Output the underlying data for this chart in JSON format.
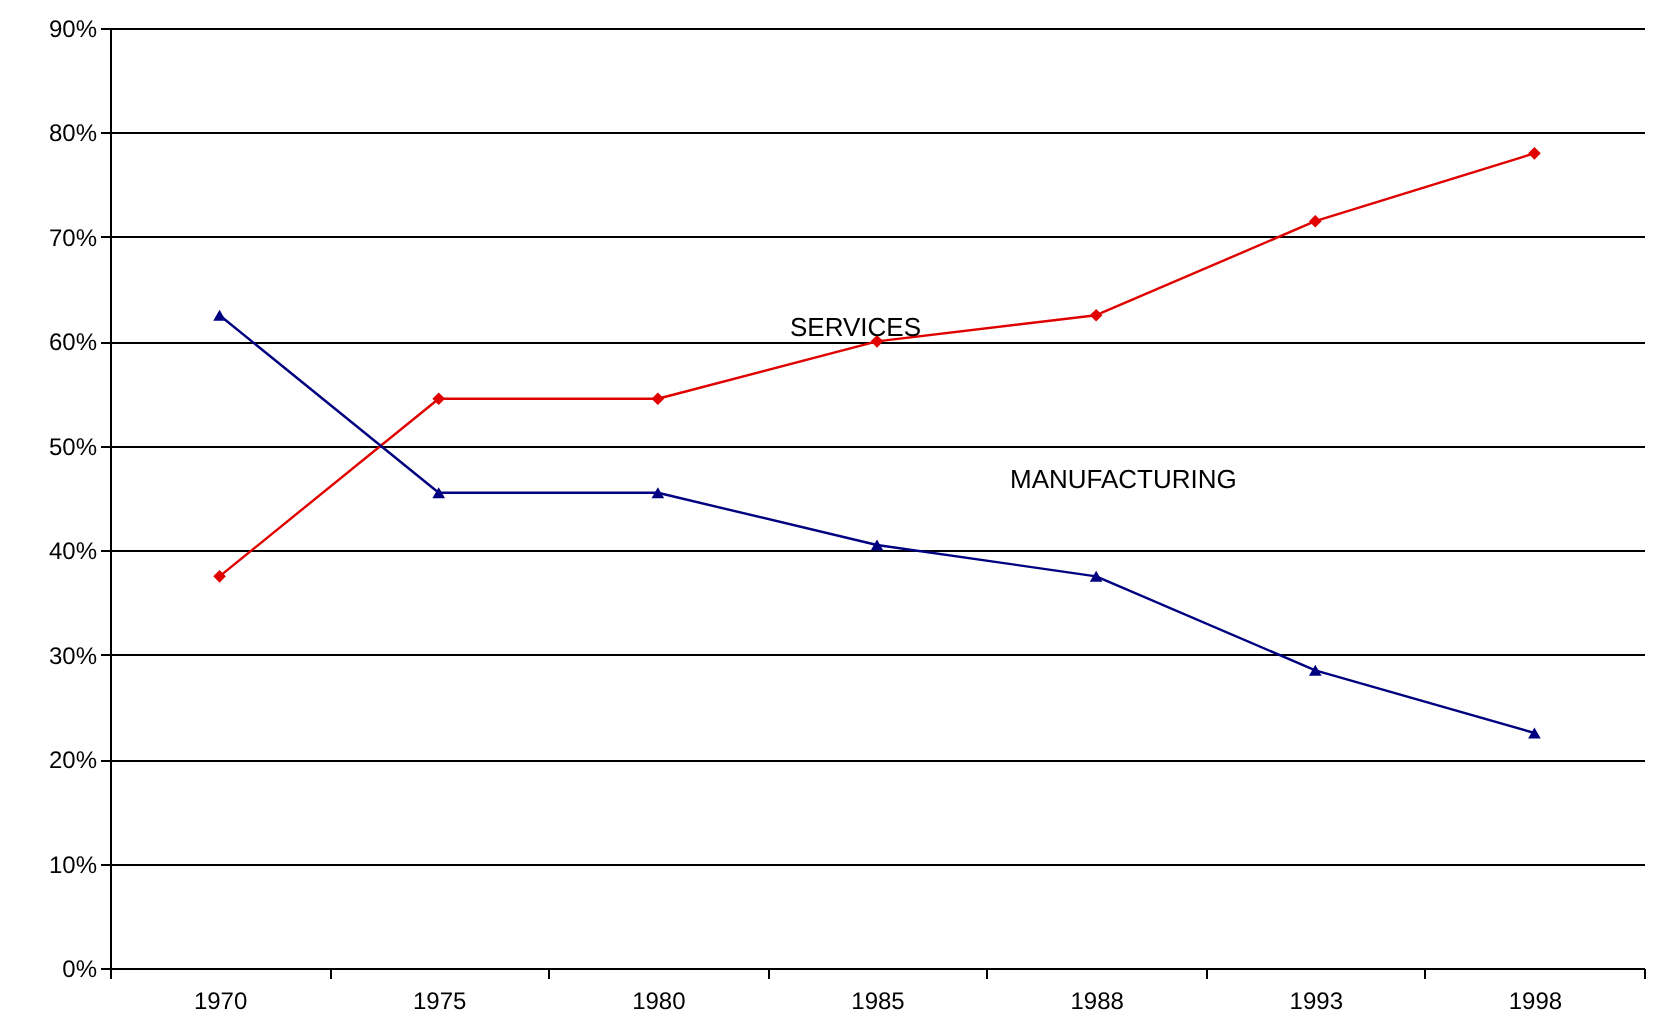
{
  "chart_data": {
    "type": "line",
    "categories": [
      "1970",
      "1975",
      "1980",
      "1985",
      "1988",
      "1993",
      "1998"
    ],
    "series": [
      {
        "name": "SERVICES",
        "color": "#e00000",
        "marker": "diamond",
        "values": [
          37.5,
          54.5,
          54.5,
          60,
          62.5,
          71.5,
          78
        ]
      },
      {
        "name": "MANUFACTURING",
        "color": "#000080",
        "marker": "triangle",
        "values": [
          62.5,
          45.5,
          45.5,
          40.5,
          37.5,
          28.5,
          22.5
        ]
      }
    ],
    "ylim": [
      0,
      90
    ],
    "yticks": [
      {
        "value": 0,
        "label": "0%"
      },
      {
        "value": 10,
        "label": "10%"
      },
      {
        "value": 20,
        "label": "20%"
      },
      {
        "value": 30,
        "label": "30%"
      },
      {
        "value": 40,
        "label": "40%"
      },
      {
        "value": 50,
        "label": "50%"
      },
      {
        "value": 60,
        "label": "60%"
      },
      {
        "value": 70,
        "label": "70%"
      },
      {
        "value": 80,
        "label": "80%"
      },
      {
        "value": 90,
        "label": "90%"
      }
    ],
    "grid": "y"
  }
}
